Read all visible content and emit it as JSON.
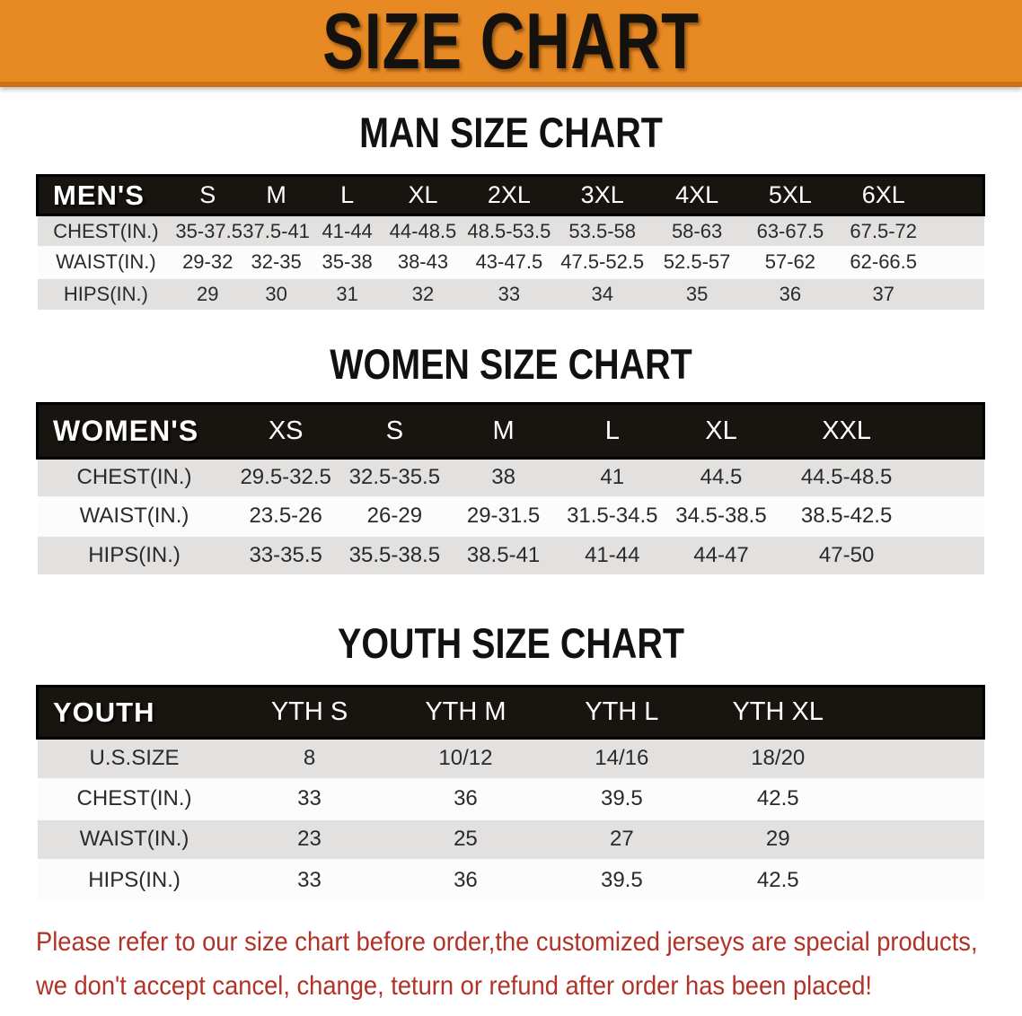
{
  "banner": {
    "title": "SIZE CHART"
  },
  "men": {
    "section_title": "MAN SIZE CHART",
    "table": {
      "label": "MEN'S",
      "columns": [
        "S",
        "M",
        "L",
        "XL",
        "2XL",
        "3XL",
        "4XL",
        "5XL",
        "6XL"
      ],
      "rows": [
        {
          "label": "CHEST(IN.)",
          "values": [
            "35-37.5",
            "37.5-41",
            "41-44",
            "44-48.5",
            "48.5-53.5",
            "53.5-58",
            "58-63",
            "63-67.5",
            "67.5-72"
          ]
        },
        {
          "label": "WAIST(IN.)",
          "values": [
            "29-32",
            "32-35",
            "35-38",
            "38-43",
            "43-47.5",
            "47.5-52.5",
            "52.5-57",
            "57-62",
            "62-66.5"
          ]
        },
        {
          "label": "HIPS(IN.)",
          "values": [
            "29",
            "30",
            "31",
            "32",
            "33",
            "34",
            "35",
            "36",
            "37"
          ]
        }
      ]
    }
  },
  "women": {
    "section_title": "WOMEN SIZE CHART",
    "table": {
      "label": "WOMEN'S",
      "columns": [
        "XS",
        "S",
        "M",
        "L",
        "XL",
        "XXL"
      ],
      "rows": [
        {
          "label": "CHEST(IN.)",
          "values": [
            "29.5-32.5",
            "32.5-35.5",
            "38",
            "41",
            "44.5",
            "44.5-48.5"
          ]
        },
        {
          "label": "WAIST(IN.)",
          "values": [
            "23.5-26",
            "26-29",
            "29-31.5",
            "31.5-34.5",
            "34.5-38.5",
            "38.5-42.5"
          ]
        },
        {
          "label": "HIPS(IN.)",
          "values": [
            "33-35.5",
            "35.5-38.5",
            "38.5-41",
            "41-44",
            "44-47",
            "47-50"
          ]
        }
      ]
    }
  },
  "youth": {
    "section_title": "YOUTH SIZE CHART",
    "table": {
      "label": "YOUTH",
      "columns": [
        "YTH S",
        "YTH M",
        "YTH L",
        "YTH XL"
      ],
      "rows": [
        {
          "label": "U.S.SIZE",
          "values": [
            "8",
            "10/12",
            "14/16",
            "18/20"
          ]
        },
        {
          "label": "CHEST(IN.)",
          "values": [
            "33",
            "36",
            "39.5",
            "42.5"
          ]
        },
        {
          "label": "WAIST(IN.)",
          "values": [
            "23",
            "25",
            "27",
            "29"
          ]
        },
        {
          "label": "HIPS(IN.)",
          "values": [
            "33",
            "36",
            "39.5",
            "42.5"
          ]
        }
      ]
    }
  },
  "disclaimer": {
    "line1": "Please refer to our size chart before order,the customized jerseys are special products,",
    "line2": "we don't accept cancel, change, teturn or refund after order has been placed!"
  },
  "colors": {
    "banner_orange": "#E88A24",
    "banner_border": "#CF7018",
    "header_black": "#18140F",
    "row_gray": "#E3E1E0",
    "row_white": "#FCFCFC",
    "title_black": "#111111",
    "disclaimer_red": "#B23228"
  }
}
